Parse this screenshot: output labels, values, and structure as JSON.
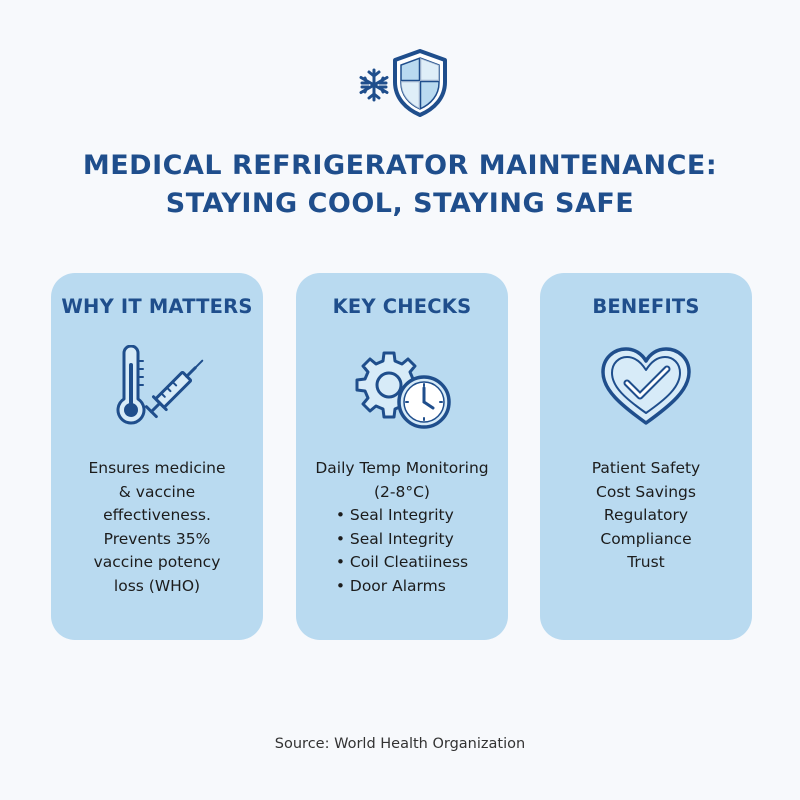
{
  "header": {
    "logo_icons": [
      "snowflake-icon",
      "shield-icon"
    ],
    "title_line1": "MEDICAL REFRIGERATOR MAINTENANCE:",
    "title_line2": "STAYING COOL, STAYING SAFE"
  },
  "cards": [
    {
      "title": "WHY IT MATTERS",
      "icon": "thermometer-syringe-icon",
      "lines": [
        "Ensures medicine",
        "& vaccine",
        "effectiveness.",
        "Prevents 35%",
        "vaccine potency",
        "loss (WHO)"
      ]
    },
    {
      "title": "KEY CHECKS",
      "icon": "gear-clock-icon",
      "lead_line1": "Daily Temp Monitoring",
      "lead_line2": "(2-8°C)",
      "bullets": [
        "Seal Integrity",
        "Seal Integrity",
        "Coil Cleatiiness",
        "Door Alarms"
      ]
    },
    {
      "title": "BENEFITS",
      "icon": "heart-check-icon",
      "lines": [
        "Patient Safety",
        "Cost Savings",
        "Regulatory",
        "Compliance",
        "Trust"
      ]
    }
  ],
  "footer": {
    "source": "Source: World Health Organization"
  },
  "colors": {
    "accent": "#1f4e8c",
    "card_bg": "#b9daf0",
    "page_bg": "#f7f9fc"
  }
}
